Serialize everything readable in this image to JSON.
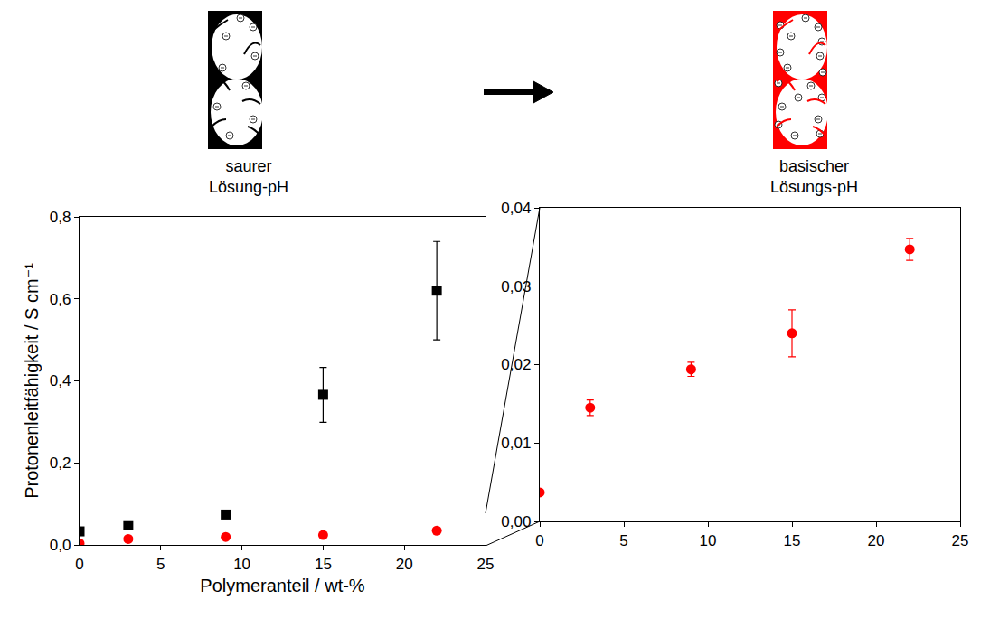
{
  "chart_data": [
    {
      "type": "scatter",
      "xlabel": "Polymeranteil / wt-%",
      "ylabel": "Protonenleitfähigkeit / S cm⁻¹",
      "xlim": [
        0,
        25
      ],
      "xticks": [
        0,
        5,
        10,
        15,
        20,
        25
      ],
      "ylim": [
        0,
        0.8
      ],
      "yticks": [
        {
          "value": 0,
          "label": "0,0"
        },
        {
          "value": 0.2,
          "label": "0,2"
        },
        {
          "value": 0.4,
          "label": "0,4"
        },
        {
          "value": 0.6,
          "label": "0,6"
        },
        {
          "value": 0.8,
          "label": "0,8"
        }
      ],
      "grid": false,
      "series": [
        {
          "color": "#000000",
          "marker": "square",
          "x": [
            0,
            3,
            9,
            15,
            22
          ],
          "values": [
            0.033,
            0.048,
            0.074,
            0.366,
            0.62
          ],
          "errors": [
            0.002,
            0.003,
            0.004,
            0.067,
            0.12
          ]
        },
        {
          "color": "#ff0000",
          "marker": "circle",
          "x": [
            0,
            3,
            9,
            15,
            22
          ],
          "values": [
            0.0037,
            0.0145,
            0.0194,
            0.024,
            0.0347
          ],
          "errors": [
            0.0002,
            0.001,
            0.0009,
            0.003,
            0.0014
          ]
        }
      ]
    },
    {
      "type": "scatter",
      "xlim": [
        0,
        25
      ],
      "xticks": [
        0,
        5,
        10,
        15,
        20,
        25
      ],
      "ylim": [
        0,
        0.04
      ],
      "yticks": [
        {
          "value": 0,
          "label": "0,00"
        },
        {
          "value": 0.01,
          "label": "0,01"
        },
        {
          "value": 0.02,
          "label": "0,02"
        },
        {
          "value": 0.03,
          "label": "0,03"
        },
        {
          "value": 0.04,
          "label": "0,04"
        }
      ],
      "grid": false,
      "series": [
        {
          "color": "#ff0000",
          "marker": "circle",
          "x": [
            0,
            3,
            9,
            15,
            22
          ],
          "values": [
            0.0037,
            0.0145,
            0.0194,
            0.024,
            0.0347
          ],
          "errors": [
            0.0002,
            0.001,
            0.0009,
            0.003,
            0.0014
          ]
        }
      ]
    }
  ],
  "schematic": {
    "left_label": [
      "saurer",
      "Lösung-pH"
    ],
    "right_label": [
      "basischer",
      "Lösungs-pH"
    ],
    "left_color": "#000000",
    "right_color": "#ff0000"
  }
}
